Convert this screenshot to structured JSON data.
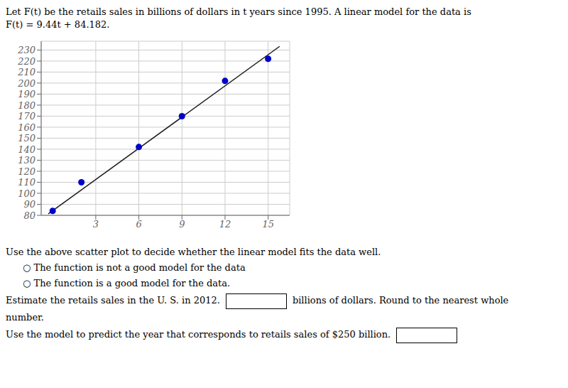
{
  "chart_data": {
    "type": "scatter",
    "title": "Let F(t) be the retails sales in billions of dollars in t years since 1995. A linear model for the data is",
    "subtitle": "F(t) = 9.44t + 84.182.",
    "series": [
      {
        "type": "line",
        "x": [
          -0.3,
          15.8
        ],
        "values": [
          81.35,
          233.334
        ],
        "color": "#1a1a1a"
      },
      {
        "type": "scatter",
        "x": [
          0,
          2,
          6,
          9,
          12,
          15
        ],
        "values": [
          84,
          110,
          142,
          170,
          202,
          222
        ],
        "color": "#0000CC",
        "marker": "circle"
      }
    ],
    "xlim": [
      -0.8,
      16.5
    ],
    "xticks": [
      3,
      6,
      9,
      12,
      15
    ],
    "ylim": [
      80,
      238
    ],
    "yticks": [
      80,
      90,
      100,
      110,
      120,
      130,
      140,
      150,
      160,
      170,
      180,
      190,
      200,
      210,
      220,
      230
    ],
    "grid": true,
    "annotations": [
      "Use the above scatter plot to decide whether the linear model fits the data well.",
      "○ The function is not a good model for the data",
      "○ The function is a good model for the data.",
      "Estimate the retails sales in the U. S. in 2012.",
      "billions of dollars. Round to the nearest whole",
      "number.",
      "Use the model to predict the year that corresponds to retails sales of $250 billion."
    ]
  }
}
